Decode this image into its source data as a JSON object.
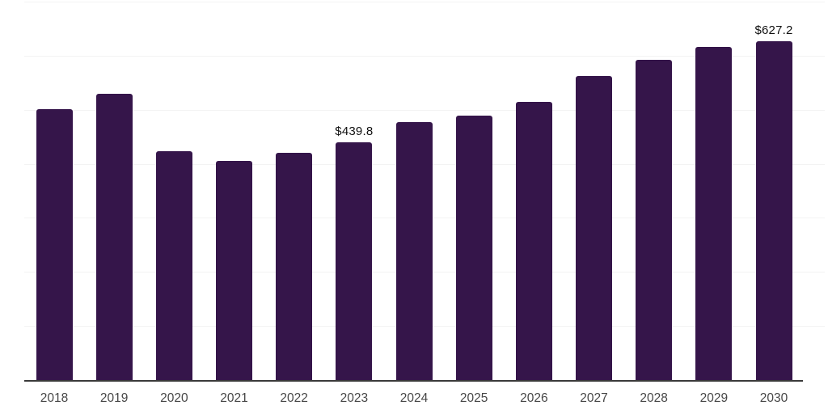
{
  "chart_data": {
    "type": "bar",
    "title": "",
    "xlabel": "",
    "ylabel": "",
    "categories": [
      "2018",
      "2019",
      "2020",
      "2021",
      "2022",
      "2023",
      "2024",
      "2025",
      "2026",
      "2027",
      "2028",
      "2029",
      "2030"
    ],
    "values": [
      501,
      530,
      424,
      405,
      420,
      439.8,
      477,
      489,
      515,
      562,
      593,
      616,
      627.2
    ],
    "point_labels": [
      "",
      "",
      "",
      "",
      "",
      "$439.8",
      "",
      "",
      "",
      "",
      "",
      "",
      "$627.2"
    ],
    "ylim": [
      0,
      700
    ],
    "gridline_step": 100,
    "grid": true,
    "legend_position": "none",
    "y_axis_labels_visible": false,
    "colors": {
      "bar": "#35154A",
      "gridline": "#f3f3f3",
      "axis": "#3a3a3a",
      "tick_label": "#474747",
      "data_label": "#111111",
      "background": "#ffffff"
    }
  }
}
